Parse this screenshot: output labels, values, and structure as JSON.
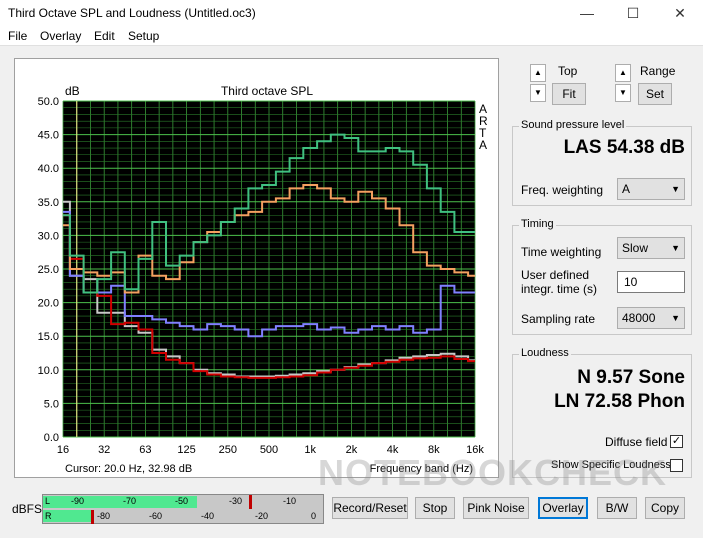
{
  "window": {
    "title": "Third Octave SPL and Loudness (Untitled.oc3)",
    "minimize": "—",
    "maximize": "☐",
    "close": "✕"
  },
  "menu": [
    "File",
    "Overlay",
    "Edit",
    "Setup"
  ],
  "chart_data": {
    "type": "line",
    "title": "Third octave SPL",
    "ylabel": "dB",
    "xlabel": "Frequency band (Hz)",
    "side_label": [
      "A",
      "R",
      "T",
      "A"
    ],
    "ylim": [
      0,
      50
    ],
    "yticks": [
      "0.0",
      "5.0",
      "10.0",
      "15.0",
      "20.0",
      "25.0",
      "30.0",
      "35.0",
      "40.0",
      "45.0",
      "50.0"
    ],
    "xticks": [
      "16",
      "32",
      "63",
      "125",
      "250",
      "500",
      "1k",
      "2k",
      "4k",
      "8k",
      "16k"
    ],
    "bands": 31,
    "cursor": "Cursor:    20.0 Hz, 32.98 dB",
    "grid": true,
    "series": [
      {
        "color": "#c8c8c8",
        "values": [
          35.0,
          24.0,
          23.5,
          18.5,
          18.5,
          16.5,
          15.5,
          13.0,
          12.0,
          11.0,
          10.0,
          9.5,
          9.3,
          9.0,
          9.0,
          9.0,
          9.1,
          9.3,
          9.5,
          9.8,
          10.0,
          10.4,
          10.8,
          11.0,
          11.4,
          11.8,
          12.0,
          12.2,
          12.4,
          12.0,
          11.4
        ]
      },
      {
        "color": "#d00000",
        "values": [
          33.0,
          26.5,
          21.5,
          21.0,
          16.8,
          17.0,
          16.0,
          12.5,
          11.5,
          11.0,
          9.8,
          9.3,
          9.0,
          8.9,
          8.8,
          8.8,
          8.9,
          9.0,
          9.2,
          9.6,
          10.0,
          10.3,
          10.6,
          11.0,
          11.2,
          11.5,
          11.7,
          11.8,
          12.0,
          11.6,
          11.3
        ]
      },
      {
        "color": "#8080ff",
        "values": [
          33.5,
          24.0,
          21.5,
          21.5,
          22.5,
          18.0,
          18.0,
          17.5,
          17.0,
          16.5,
          16.0,
          16.8,
          16.5,
          16.0,
          15.0,
          16.0,
          16.5,
          16.5,
          16.8,
          16.0,
          16.3,
          15.5,
          16.0,
          16.5,
          16.0,
          16.5,
          15.5,
          16.0,
          22.5,
          21.5,
          21.5
        ]
      },
      {
        "color": "#f4a060",
        "values": [
          31.5,
          25.0,
          24.5,
          24.0,
          24.5,
          21.5,
          27.0,
          24.0,
          23.5,
          26.0,
          29.0,
          30.5,
          32.0,
          33.0,
          33.5,
          35.0,
          35.5,
          37.0,
          37.5,
          37.0,
          35.5,
          35.0,
          36.5,
          35.5,
          34.0,
          31.5,
          27.5,
          25.5,
          25.0,
          24.5,
          24.0
        ]
      },
      {
        "color": "#40c080",
        "values": [
          33.0,
          27.0,
          21.5,
          23.5,
          27.5,
          22.0,
          26.5,
          32.0,
          25.5,
          27.0,
          29.0,
          30.0,
          32.0,
          34.0,
          37.0,
          37.5,
          39.5,
          41.5,
          43.0,
          44.0,
          45.0,
          44.5,
          42.5,
          42.5,
          43.0,
          42.5,
          40.5,
          37.0,
          33.5,
          30.5,
          30.5
        ]
      }
    ]
  },
  "controls": {
    "top_label": "Top",
    "fit_label": "Fit",
    "range_label": "Range",
    "set_label": "Set",
    "up": "▲",
    "down": "▼"
  },
  "spl": {
    "title": "Sound pressure level",
    "value": "LAS 54.38 dB",
    "freq_label": "Freq. weighting",
    "freq_value": "A"
  },
  "timing": {
    "title": "Timing",
    "tw_label": "Time weighting",
    "tw_value": "Slow",
    "udi_label1": "User defined",
    "udi_label2": "integr. time (s)",
    "udi_value": "10",
    "sr_label": "Sampling rate",
    "sr_value": "48000"
  },
  "loudness": {
    "title": "Loudness",
    "n_value": "N 9.57 Sone",
    "ln_value": "LN 72.58 Phon",
    "diffuse_label": "Diffuse field",
    "diffuse_check": "✓",
    "specific_label": "Show Specific Loudness"
  },
  "meter": {
    "label": "dBFS",
    "L": "L",
    "R": "R",
    "ticks_top": [
      "-90",
      "-70",
      "-50",
      "-30",
      "-10"
    ],
    "ticks_bottom": [
      "-80",
      "-60",
      "-40",
      "-20",
      "0"
    ],
    "l_level": 0.55,
    "r_level": 0.18,
    "accent": "#50e890"
  },
  "buttons": {
    "record": "Record/Reset",
    "stop": "Stop",
    "pink": "Pink Noise",
    "overlay": "Overlay",
    "bw": "B/W",
    "copy": "Copy"
  },
  "watermark": "NOTEBOOKCHECK"
}
